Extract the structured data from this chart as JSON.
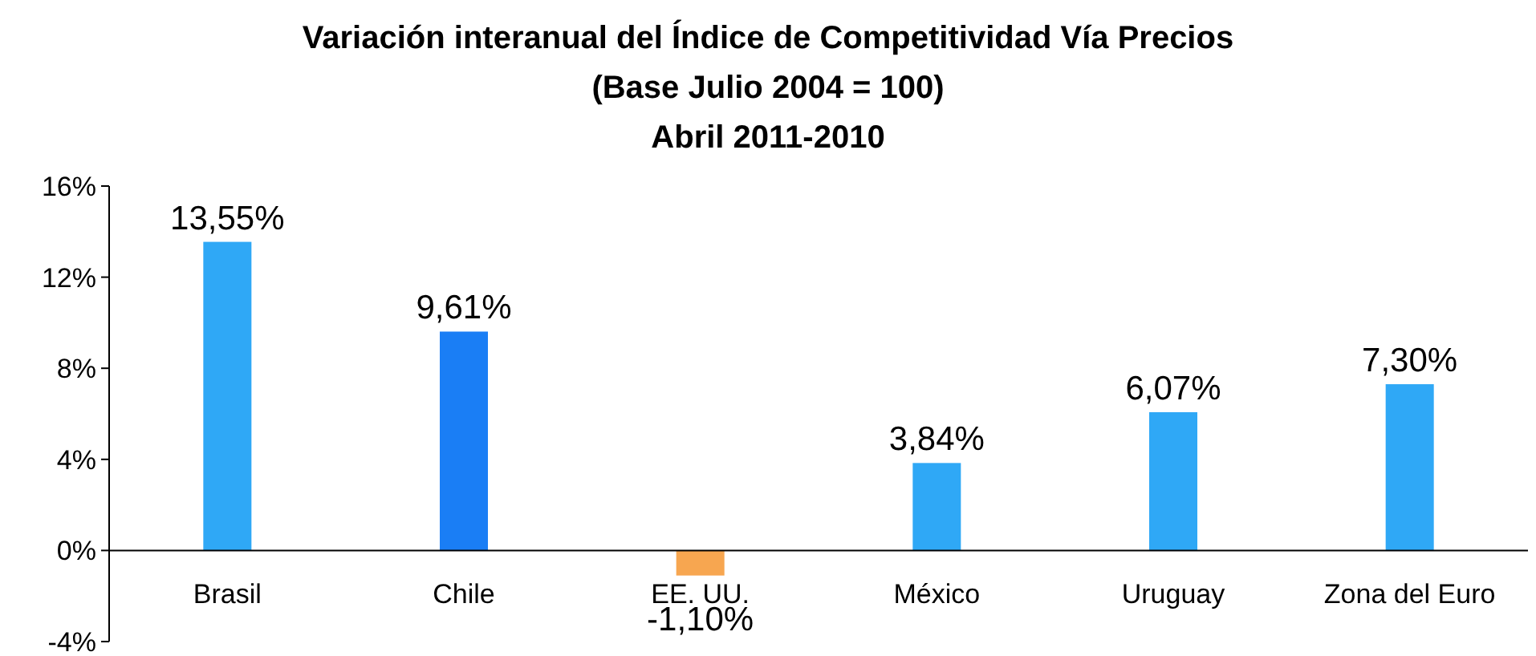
{
  "chart_data": {
    "type": "bar",
    "title": "Variación interanual del Índice de Competitividad Vía Precios",
    "subtitle": "(Base Julio 2004 = 100)\nAbril 2011-2010",
    "categories": [
      "Brasil",
      "Chile",
      "EE. UU.",
      "México",
      "Uruguay",
      "Zona del Euro"
    ],
    "values": [
      13.55,
      9.61,
      -1.1,
      3.84,
      6.07,
      7.3
    ],
    "colors": [
      "#2fa8f6",
      "#1a7ef5",
      "#f7a650",
      "#2fa8f6",
      "#2fa8f6",
      "#2fa8f6"
    ],
    "value_labels": [
      "13,55%",
      "9,61%",
      "-1,10%",
      "3,84%",
      "6,07%",
      "7,30%"
    ],
    "ylim": [
      -4,
      16
    ],
    "yticks": [
      {
        "value": -4,
        "label": "-4%"
      },
      {
        "value": 0,
        "label": "0%"
      },
      {
        "value": 4,
        "label": "4%"
      },
      {
        "value": 8,
        "label": "8%"
      },
      {
        "value": 12,
        "label": "12%"
      },
      {
        "value": 16,
        "label": "16%"
      }
    ],
    "grid": false
  }
}
